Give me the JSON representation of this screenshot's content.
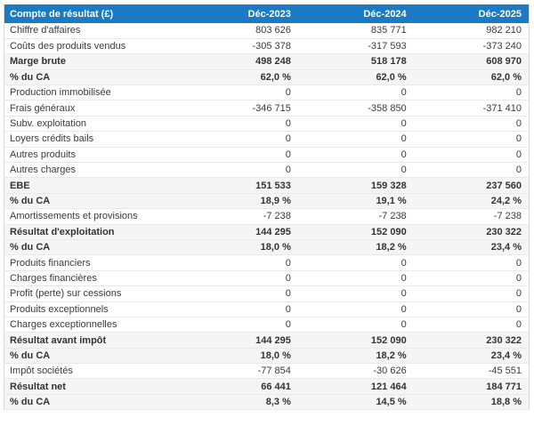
{
  "chart_data": {
    "type": "table",
    "title": "Compte de résultat (£)",
    "currency": "£",
    "columns": [
      "Compte de résultat (£)",
      "Déc-2023",
      "Déc-2024",
      "Déc-2025"
    ],
    "rows": [
      {
        "label": "Chiffre d'affaires",
        "values": [
          "803 626",
          "835 771",
          "982 210"
        ],
        "emphasis": false
      },
      {
        "label": "Coûts des produits vendus",
        "values": [
          "-305 378",
          "-317 593",
          "-373 240"
        ],
        "emphasis": false
      },
      {
        "label": "Marge brute",
        "values": [
          "498 248",
          "518 178",
          "608 970"
        ],
        "emphasis": true
      },
      {
        "label": "% du CA",
        "values": [
          "62,0 %",
          "62,0 %",
          "62,0 %"
        ],
        "emphasis": true
      },
      {
        "label": "Production immobilisée",
        "values": [
          "0",
          "0",
          "0"
        ],
        "emphasis": false
      },
      {
        "label": "Frais généraux",
        "values": [
          "-346 715",
          "-358 850",
          "-371 410"
        ],
        "emphasis": false
      },
      {
        "label": "Subv. exploitation",
        "values": [
          "0",
          "0",
          "0"
        ],
        "emphasis": false
      },
      {
        "label": "Loyers crédits bails",
        "values": [
          "0",
          "0",
          "0"
        ],
        "emphasis": false
      },
      {
        "label": "Autres produits",
        "values": [
          "0",
          "0",
          "0"
        ],
        "emphasis": false
      },
      {
        "label": "Autres charges",
        "values": [
          "0",
          "0",
          "0"
        ],
        "emphasis": false
      },
      {
        "label": "EBE",
        "values": [
          "151 533",
          "159 328",
          "237 560"
        ],
        "emphasis": true
      },
      {
        "label": "% du CA",
        "values": [
          "18,9 %",
          "19,1 %",
          "24,2 %"
        ],
        "emphasis": true
      },
      {
        "label": "Amortissements et provisions",
        "values": [
          "-7 238",
          "-7 238",
          "-7 238"
        ],
        "emphasis": false
      },
      {
        "label": "Résultat d'exploitation",
        "values": [
          "144 295",
          "152 090",
          "230 322"
        ],
        "emphasis": true
      },
      {
        "label": "% du CA",
        "values": [
          "18,0 %",
          "18,2 %",
          "23,4 %"
        ],
        "emphasis": true
      },
      {
        "label": "Produits financiers",
        "values": [
          "0",
          "0",
          "0"
        ],
        "emphasis": false
      },
      {
        "label": "Charges financières",
        "values": [
          "0",
          "0",
          "0"
        ],
        "emphasis": false
      },
      {
        "label": "Profit (perte) sur cessions",
        "values": [
          "0",
          "0",
          "0"
        ],
        "emphasis": false
      },
      {
        "label": "Produits exceptionnels",
        "values": [
          "0",
          "0",
          "0"
        ],
        "emphasis": false
      },
      {
        "label": "Charges exceptionnelles",
        "values": [
          "0",
          "0",
          "0"
        ],
        "emphasis": false
      },
      {
        "label": "Résultat avant impôt",
        "values": [
          "144 295",
          "152 090",
          "230 322"
        ],
        "emphasis": true
      },
      {
        "label": "% du CA",
        "values": [
          "18,0 %",
          "18,2 %",
          "23,4 %"
        ],
        "emphasis": true
      },
      {
        "label": "Impôt sociétés",
        "values": [
          "-77 854",
          "-30 626",
          "-45 551"
        ],
        "emphasis": false
      },
      {
        "label": "Résultat net",
        "values": [
          "66 441",
          "121 464",
          "184 771"
        ],
        "emphasis": true
      },
      {
        "label": "% du CA",
        "values": [
          "8,3 %",
          "14,5 %",
          "18,8 %"
        ],
        "emphasis": true
      }
    ]
  },
  "colors": {
    "header_bg": "#1b7ac4",
    "header_text": "#ffffff",
    "row_bg": "#ffffff",
    "total_row_bg": "#f5f5f5",
    "row_border": "#e9e9e9",
    "table_border": "#d9d9d9",
    "text": "#3a3a3a"
  }
}
